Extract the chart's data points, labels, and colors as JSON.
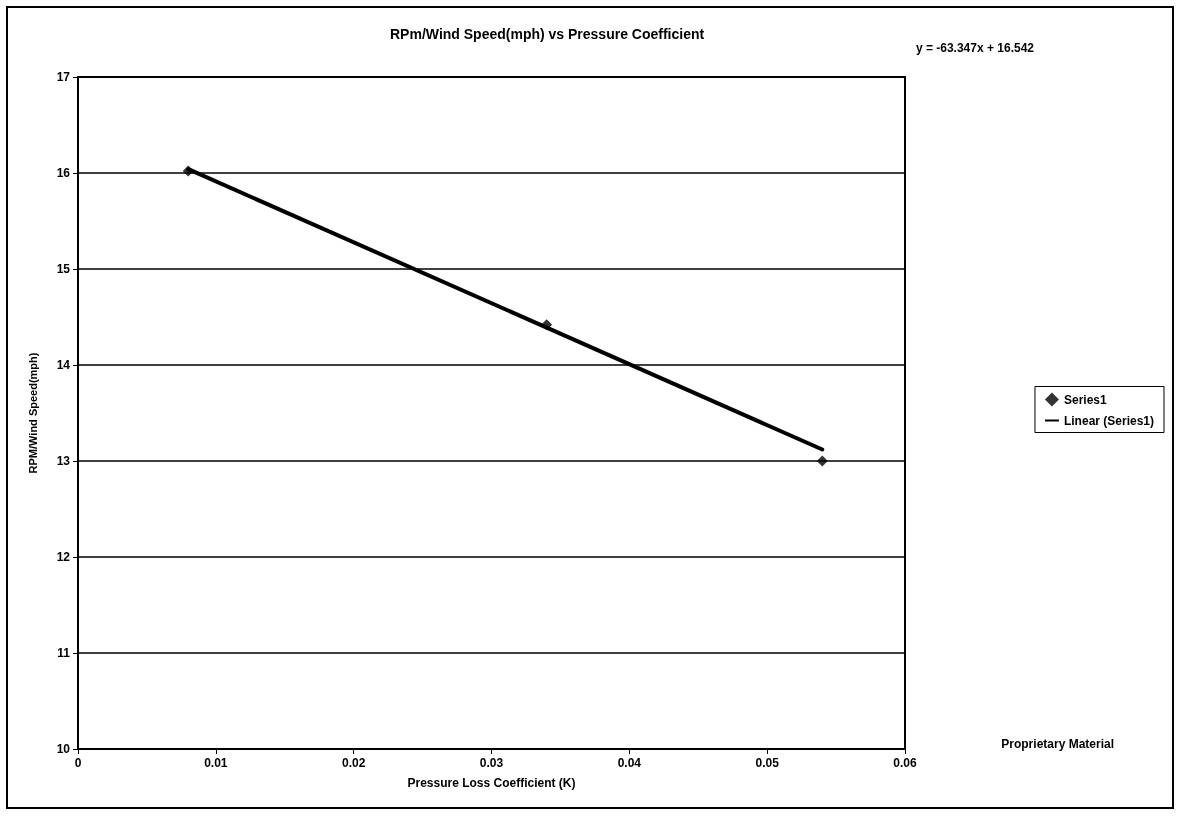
{
  "chart_data": {
    "type": "scatter",
    "title": "RPm/Wind Speed(mph) vs Pressure Coefficient",
    "xlabel": "Pressure Loss Coefficient (K)",
    "ylabel": "RPM/Wind Speed(mph)",
    "series": [
      {
        "name": "Series1",
        "color": "#000000",
        "marker": "diamond",
        "x": [
          0.008,
          0.034,
          0.054
        ],
        "values": [
          16.02,
          14.42,
          13.0
        ]
      },
      {
        "name": "Linear (Series1)",
        "type": "line",
        "color": "#000000",
        "marker": "none",
        "x": [
          0.008,
          0.054
        ],
        "values": [
          16.04,
          13.12
        ]
      }
    ],
    "annotations": [
      "y = -63.347x + 16.542",
      "Proprietary Material"
    ],
    "xlim": [
      0,
      0.06
    ],
    "xticks": [
      0,
      0.01,
      0.02,
      0.03,
      0.04,
      0.05,
      0.06
    ],
    "ylim": [
      10,
      17
    ],
    "yticks": [
      10,
      11,
      12,
      13,
      14,
      15,
      16,
      17
    ],
    "grid": "y",
    "legend": "right"
  }
}
